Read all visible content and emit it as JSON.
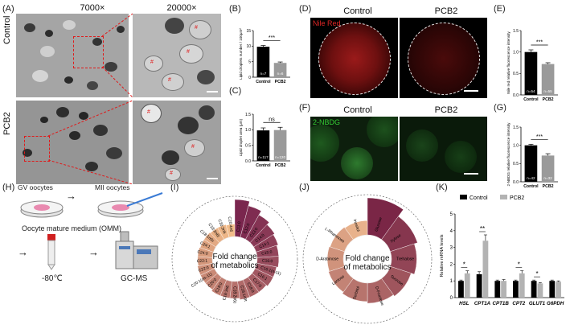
{
  "panels": {
    "A": "(A)",
    "B": "(B)",
    "C": "(C)",
    "D": "(D)",
    "E": "(E)",
    "F": "(F)",
    "G": "(G)",
    "H": "(H)",
    "I": "(I)",
    "J": "(J)",
    "K": "(K)"
  },
  "panel_a": {
    "mag_low": "7000×",
    "mag_high": "20000×",
    "row_control": "Control",
    "row_pcb2": "PCB2",
    "marker": "#"
  },
  "panel_d": {
    "col_control": "Control",
    "col_pcb2": "PCB2",
    "stain": "Nile Red"
  },
  "panel_f": {
    "col_control": "Control",
    "col_pcb2": "PCB2",
    "stain": "2-NBDG"
  },
  "panel_h": {
    "gv": "GV oocytes",
    "mii": "MII oocytes",
    "medium": "Oocyte mature medium (OMM)",
    "freeze": "-80℃",
    "instrument": "GC-MS",
    "arrow": "→"
  },
  "panel_i": {
    "center_line1": "Fold change",
    "center_line2": "of metabolics",
    "labels": [
      "C11:0",
      "C12:0",
      "C13:0",
      "C14:0",
      "C14:1",
      "C15:0",
      "C16:0",
      "C16:1(n-11)",
      "C16:1",
      "C17:0",
      "C18:0",
      "C18:1n9t",
      "C18:2n6c",
      "C18:3n6",
      "C19:0",
      "C20:0",
      "C20:1(cis-11)",
      "C22:0",
      "C22:1",
      "C24:0",
      "C24:1",
      "C18:1n9c",
      "C18:2n6t",
      "C20:3n6",
      "C20:4n6"
    ],
    "values": [
      2.4,
      2.1,
      1.8,
      1.6,
      1.5,
      1.4,
      1.4,
      1.3,
      1.3,
      1.2,
      1.2,
      1.2,
      1.1,
      1.1,
      1.1,
      1.0,
      1.0,
      1.0,
      0.95,
      0.95,
      0.9,
      0.9,
      0.85,
      0.85,
      0.8
    ]
  },
  "panel_j": {
    "center_line1": "Fold change",
    "center_line2": "of metabolics",
    "labels": [
      "Glucose",
      "Xylose",
      "Trehalose",
      "Sucrose",
      "D-Fructose",
      "Sorbitol",
      "Lactose",
      "D-Arabinose",
      "L-Rhamnose",
      "Inositol"
    ],
    "values": [
      2.2,
      1.7,
      1.5,
      1.3,
      1.2,
      1.1,
      1.0,
      0.95,
      0.9,
      0.85
    ]
  },
  "chart_data": [
    {
      "id": "B",
      "type": "bar",
      "categories": [
        "Control",
        "PCB2"
      ],
      "values": [
        9.8,
        4.6
      ],
      "errors": [
        0.4,
        0.3
      ],
      "n_labels": [
        "n=7",
        "n=6"
      ],
      "ylabel": "Lipid droplets number / 100μm²",
      "ylim": [
        0,
        15
      ],
      "yticks": [
        "0",
        "5",
        "10",
        "15"
      ],
      "significance": "***",
      "colors": [
        "#000000",
        "#9a9a9a"
      ]
    },
    {
      "id": "C",
      "type": "bar",
      "categories": [
        "Control",
        "PCB2"
      ],
      "values": [
        0.98,
        0.99
      ],
      "errors": [
        0.08,
        0.09
      ],
      "n_labels": [
        "n=117",
        "n=120"
      ],
      "ylabel": "Lipid droplet area (μm)",
      "ylim": [
        0,
        1.5
      ],
      "yticks": [
        "0.0",
        "0.5",
        "1.0",
        "1.5"
      ],
      "significance": "ns",
      "colors": [
        "#000000",
        "#9a9a9a"
      ]
    },
    {
      "id": "E",
      "type": "bar",
      "categories": [
        "Control",
        "PCB2"
      ],
      "values": [
        1.0,
        0.72
      ],
      "errors": [
        0.05,
        0.03
      ],
      "n_labels": [
        "n=54",
        "n=55"
      ],
      "ylabel": "Nile red relative fluorescence intensity",
      "ylim": [
        0,
        1.5
      ],
      "yticks": [
        "0.0",
        "0.5",
        "1.0",
        "1.5"
      ],
      "significance": "***",
      "colors": [
        "#000000",
        "#9a9a9a"
      ]
    },
    {
      "id": "G",
      "type": "bar",
      "categories": [
        "Control",
        "PCB2"
      ],
      "values": [
        1.0,
        0.72
      ],
      "errors": [
        0.03,
        0.05
      ],
      "n_labels": [
        "n=42",
        "n=32"
      ],
      "ylabel": "2-NBDG relative fluorescence intensity",
      "ylim": [
        0,
        1.5
      ],
      "yticks": [
        "0.0",
        "0.5",
        "1.0",
        "1.5"
      ],
      "significance": "***",
      "colors": [
        "#000000",
        "#9a9a9a"
      ]
    },
    {
      "id": "K",
      "type": "bar",
      "categories": [
        "HSL",
        "CPT1A",
        "CPT1B",
        "CPT2",
        "GLUT1",
        "G6PDH"
      ],
      "series": [
        {
          "name": "Control",
          "values": [
            1.0,
            1.4,
            1.0,
            1.0,
            1.0,
            1.0
          ],
          "errors": [
            0.05,
            0.15,
            0.05,
            0.05,
            0.05,
            0.05
          ],
          "color": "#000000"
        },
        {
          "name": "PCB2",
          "values": [
            1.45,
            3.4,
            1.0,
            1.45,
            0.85,
            0.95
          ],
          "errors": [
            0.15,
            0.35,
            0.08,
            0.15,
            0.05,
            0.05
          ],
          "color": "#b3b3b3"
        }
      ],
      "significance": [
        "*",
        "**",
        "",
        "*",
        "*",
        ""
      ],
      "ylabel": "Relative mRNA levels",
      "ylim": [
        0,
        5
      ],
      "yticks": [
        "0",
        "1",
        "2",
        "3",
        "4",
        "5"
      ],
      "legend": "top"
    }
  ]
}
